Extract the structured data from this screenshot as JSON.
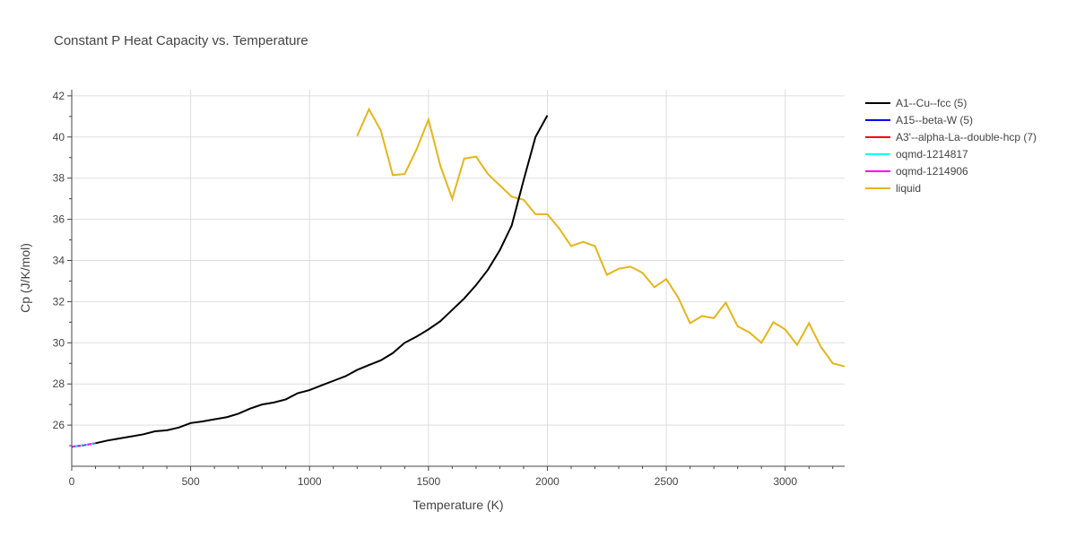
{
  "chart_data": {
    "type": "line",
    "title": "Constant P Heat Capacity vs. Temperature",
    "xlabel": "Temperature (K)",
    "ylabel": "Cp (J/K/mol)",
    "xlim": [
      0,
      3250
    ],
    "ylim": [
      24.0,
      42.3
    ],
    "x_ticks": [
      0,
      500,
      1000,
      1500,
      2000,
      2500,
      3000
    ],
    "y_ticks": [
      26,
      28,
      30,
      32,
      34,
      36,
      38,
      40,
      42
    ],
    "grid": true,
    "legend_position": "right",
    "series": [
      {
        "name": "A1--Cu--fcc (5)",
        "color": "#000000",
        "x": [
          0,
          50,
          100,
          150,
          200,
          250,
          300,
          350,
          400,
          450,
          500,
          550,
          600,
          650,
          700,
          750,
          800,
          850,
          900,
          950,
          1000,
          1050,
          1100,
          1150,
          1200,
          1250,
          1300,
          1350,
          1400,
          1450,
          1500,
          1550,
          1600,
          1650,
          1700,
          1750,
          1800,
          1850,
          1900,
          1950,
          2000
        ],
        "y": [
          24.95,
          25.02,
          25.12,
          25.25,
          25.35,
          25.45,
          25.55,
          25.7,
          25.75,
          25.88,
          26.1,
          26.18,
          26.28,
          26.38,
          26.55,
          26.8,
          27.0,
          27.1,
          27.25,
          27.55,
          27.7,
          27.93,
          28.15,
          28.37,
          28.68,
          28.92,
          29.15,
          29.5,
          30.0,
          30.3,
          30.65,
          31.05,
          31.6,
          32.15,
          32.8,
          33.55,
          34.5,
          35.7,
          37.9,
          40.0,
          41.05
        ]
      },
      {
        "name": "A15--beta-W (5)",
        "color": "#0000ff",
        "x": [
          0,
          50,
          100
        ],
        "y": [
          24.95,
          25.02,
          25.12
        ]
      },
      {
        "name": "A3'--alpha-La--double-hcp (7)",
        "color": "#ff0000",
        "x": [
          0,
          50,
          100
        ],
        "y": [
          24.95,
          25.02,
          25.12
        ]
      },
      {
        "name": "oqmd-1214817",
        "color": "#00ffff",
        "x": [
          0,
          50,
          100
        ],
        "y": [
          24.95,
          25.02,
          25.12
        ]
      },
      {
        "name": "oqmd-1214906",
        "color": "#ff00ff",
        "x": [
          0,
          50,
          100
        ],
        "y": [
          24.95,
          25.02,
          25.12
        ]
      },
      {
        "name": "liquid",
        "color": "#e6b519",
        "x": [
          1200,
          1250,
          1300,
          1350,
          1400,
          1450,
          1500,
          1550,
          1600,
          1650,
          1700,
          1750,
          1800,
          1850,
          1900,
          1950,
          2000,
          2050,
          2100,
          2150,
          2200,
          2250,
          2300,
          2350,
          2400,
          2450,
          2500,
          2550,
          2600,
          2650,
          2700,
          2750,
          2800,
          2850,
          2900,
          2950,
          3000,
          3050,
          3100,
          3150,
          3200,
          3250
        ],
        "y": [
          40.05,
          41.35,
          40.3,
          38.15,
          38.2,
          39.4,
          40.85,
          38.6,
          37.0,
          38.95,
          39.05,
          38.2,
          37.65,
          37.1,
          36.95,
          36.25,
          36.25,
          35.55,
          34.7,
          34.9,
          34.7,
          33.3,
          33.6,
          33.7,
          33.4,
          32.7,
          33.1,
          32.2,
          30.95,
          31.3,
          31.2,
          31.95,
          30.8,
          30.5,
          30.0,
          31.0,
          30.65,
          29.9,
          30.95,
          29.8,
          29.0,
          28.85
        ]
      }
    ]
  }
}
